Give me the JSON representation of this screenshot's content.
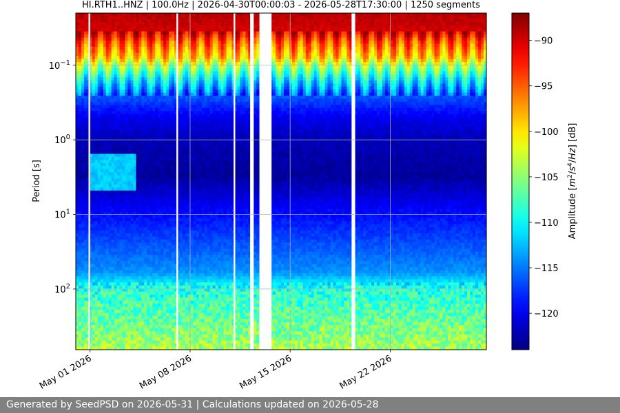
{
  "chart_data": {
    "type": "heatmap",
    "title": "HI.RTH1..HNZ | 100.0Hz | 2026-04-30T00:00:03 - 2026-05-28T17:30:00 | 1250 segments",
    "xlabel": "",
    "ylabel": "Period [s]",
    "x_range": [
      "2026-04-30T00:00:03",
      "2026-05-28T17:30:00"
    ],
    "x_ticks": [
      "May 01 2026",
      "May 08 2026",
      "May 15 2026",
      "May 22 2026"
    ],
    "y_scale": "log",
    "y_inverted": true,
    "y_range": [
      0.02,
      650
    ],
    "y_tick_values": [
      0.1,
      1,
      10,
      100
    ],
    "y_ticks": [
      "10^-1",
      "10^0",
      "10^1",
      "10^2"
    ],
    "colorbar": {
      "label": "Amplitude [m^2/s^4/Hz] [dB]",
      "colormap": "jet",
      "range": [
        -124,
        -87
      ],
      "ticks": [
        -90,
        -95,
        -100,
        -105,
        -110,
        -115,
        -120
      ]
    },
    "grid": true,
    "data_gaps_days": [
      [
        12.2,
        12.45
      ],
      [
        12.85,
        13.7
      ],
      [
        19.3,
        19.55
      ]
    ],
    "thin_gap_days": [
      0.95,
      7.1,
      11.1
    ],
    "profile": [
      {
        "period": 0.02,
        "db": -89
      },
      {
        "period": 0.035,
        "db": -90
      },
      {
        "period": 0.05,
        "db": -95
      },
      {
        "period": 0.08,
        "db": -99
      },
      {
        "period": 0.1,
        "db": -104
      },
      {
        "period": 0.15,
        "db": -110
      },
      {
        "period": 0.25,
        "db": -116
      },
      {
        "period": 0.5,
        "db": -120
      },
      {
        "period": 1,
        "db": -122
      },
      {
        "period": 3,
        "db": -123
      },
      {
        "period": 10,
        "db": -119
      },
      {
        "period": 30,
        "db": -116
      },
      {
        "period": 60,
        "db": -114
      },
      {
        "period": 100,
        "db": -109
      },
      {
        "period": 300,
        "db": -106
      },
      {
        "period": 650,
        "db": -104
      }
    ],
    "features": [
      {
        "name": "microseism-bump",
        "day_start": 1.0,
        "day_end": 4.3,
        "period_low": 1.5,
        "period_high": 5,
        "db": -112
      }
    ]
  },
  "footer": {
    "text": "Generated by SeedPSD on 2026-05-31 | Calculations updated on 2026-05-28"
  }
}
